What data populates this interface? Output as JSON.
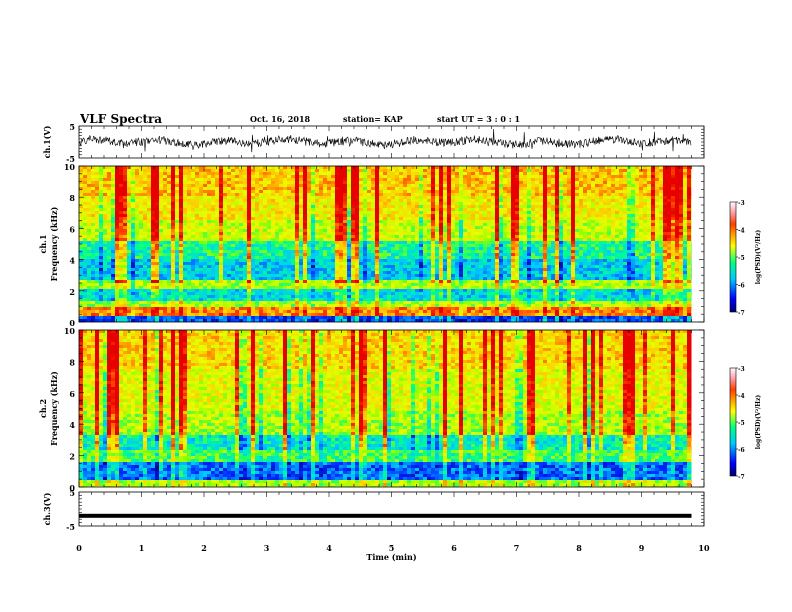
{
  "header": {
    "title": "VLF Spectra",
    "date": "Oct. 16, 2018",
    "station": "station= KAP",
    "start": "start  UT =  3 : 0  : 1"
  },
  "chart_data": [
    {
      "type": "line",
      "panel": "ch1-waveform",
      "ylabel": "ch.1(V)",
      "yticks": [
        "5",
        "-5"
      ],
      "ylim": [
        -5,
        5
      ],
      "xlim": [
        0,
        10
      ],
      "data_extent_x": [
        0,
        9.8
      ],
      "series_note": "noisy waveform oscillating roughly between -3 and +3 V",
      "color": "#000000"
    },
    {
      "type": "heatmap",
      "panel": "ch1-spectrogram",
      "ylabel_line1": "ch.1",
      "ylabel_line2": "Frequency (kHz)",
      "yticks": [
        "0",
        "2",
        "4",
        "6",
        "8",
        "10"
      ],
      "ylim": [
        0,
        10
      ],
      "xlim": [
        0,
        10
      ],
      "data_extent_x": [
        0,
        9.8
      ],
      "colorbar": {
        "label": "log(PSD)(V²/Hz)",
        "ticks": [
          "-3",
          "-4",
          "-5",
          "-6",
          "-7"
        ],
        "range": [
          -7,
          -3
        ]
      }
    },
    {
      "type": "heatmap",
      "panel": "ch2-spectrogram",
      "ylabel_line1": "ch.2",
      "ylabel_line2": "Frequency (kHz)",
      "yticks": [
        "0",
        "2",
        "4",
        "6",
        "8",
        "10"
      ],
      "ylim": [
        0,
        10
      ],
      "xlim": [
        0,
        10
      ],
      "data_extent_x": [
        0,
        9.8
      ],
      "colorbar": {
        "label": "log(PSD)(V²/Hz)",
        "ticks": [
          "-3",
          "-4",
          "-5",
          "-6",
          "-7"
        ],
        "range": [
          -7,
          -3
        ]
      }
    },
    {
      "type": "line",
      "panel": "ch3-waveform",
      "ylabel": "ch.3(V)",
      "yticks": [
        "5",
        "-5"
      ],
      "ylim": [
        -5,
        5
      ],
      "xlim": [
        0,
        10
      ],
      "data_extent_x": [
        0,
        9.8
      ],
      "series_note": "flat signal at about -2 V",
      "level": -2,
      "color": "#000000",
      "xlabel": "Time  (min)",
      "xticks": [
        "0",
        "1",
        "2",
        "3",
        "4",
        "5",
        "6",
        "7",
        "8",
        "9",
        "10"
      ]
    }
  ]
}
